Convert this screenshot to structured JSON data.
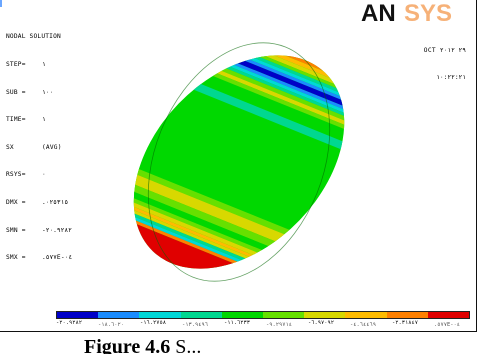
{
  "window": {
    "title": "NODAL SOLUTION"
  },
  "solution": {
    "lines": [
      {
        "key": "STEP=",
        "value": "١"
      },
      {
        "key": "SUB =",
        "value": "١٠٠"
      },
      {
        "key": "TIME=",
        "value": "١"
      },
      {
        "key": "SX",
        "value": "(AVG)"
      },
      {
        "key": "RSYS=",
        "value": "٠"
      },
      {
        "key": "DMX =",
        "value": ".٠٢٥٣١٥"
      },
      {
        "key": "SMN =",
        "value": "-٢٠.٩٢٨٢"
      },
      {
        "key": "SMX =",
        "value": ".٥٧٧E-٠٤"
      }
    ]
  },
  "brand": {
    "name": "ANSYS",
    "main_part": "AN",
    "faded_part": "SYS"
  },
  "datetime": {
    "date": "OCT ٢٩ ٢٠١٢",
    "time": "١٠:٢٢:٢١"
  },
  "legend": {
    "major_labels": [
      "-٢٠.٩٢٨٢",
      "-١٦.٢٧٥٨",
      "-١١.٦٢٣٣",
      "-٦.٩٧٠٩٢",
      "-٢.٣١٨٤٧"
    ],
    "minor_labels": [
      "-١٨.٦٠٢٠",
      "-١٣.٩٤٩٦",
      "-٩.٢٩٧١٤",
      "-٤.٦٤٤٦٩",
      ".٥٧٧E-٠٤"
    ],
    "colors": [
      "#0000c8",
      "#1a8cff",
      "#00d8d8",
      "#00d890",
      "#00d800",
      "#66e000",
      "#d8d800",
      "#ffbb00",
      "#ff8000",
      "#e00000"
    ]
  },
  "caption": {
    "figure_label": "Figure 4.6",
    "text": "S..."
  },
  "colors": {
    "brand_dark": "#111111",
    "brand_accent": "#f6a96a"
  }
}
